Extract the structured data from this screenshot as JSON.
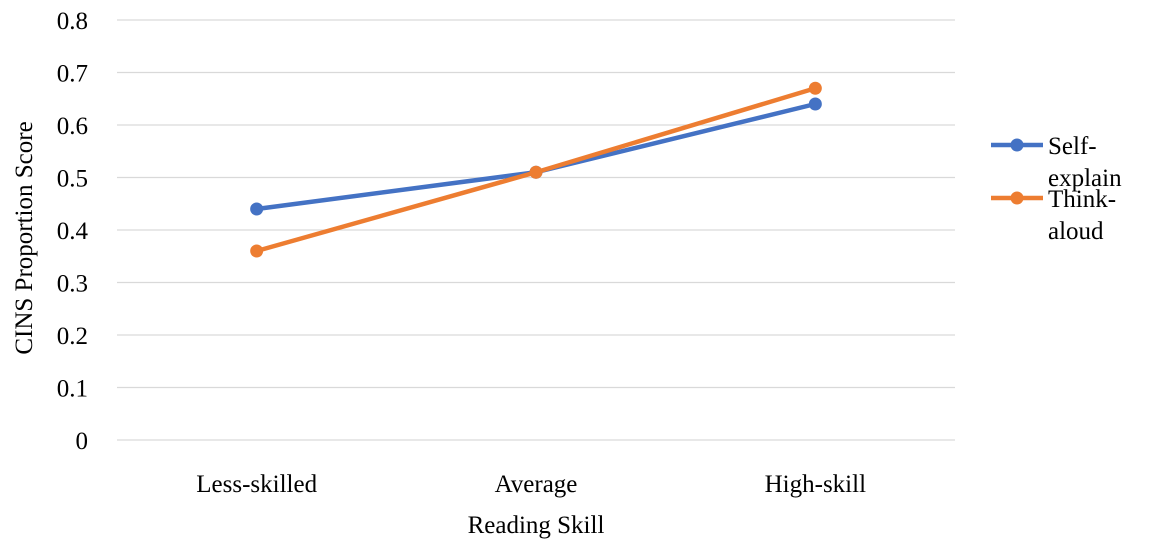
{
  "chart_data": {
    "type": "line",
    "title": "",
    "xlabel": "Reading Skill",
    "ylabel": "CINS Proportion Score",
    "categories": [
      "Less-skilled",
      "Average",
      "High-skill"
    ],
    "ylim": [
      0,
      0.8
    ],
    "yticks": [
      "0",
      "0.1",
      "0.2",
      "0.3",
      "0.4",
      "0.5",
      "0.6",
      "0.7",
      "0.8"
    ],
    "ytick_values": [
      0,
      0.1,
      0.2,
      0.3,
      0.4,
      0.5,
      0.6,
      0.7,
      0.8
    ],
    "grid": true,
    "legend_position": "right",
    "series": [
      {
        "name": "Self-explain",
        "legend_lines": [
          "Self-",
          "explain"
        ],
        "color": "#4472C4",
        "values": [
          0.44,
          0.51,
          0.64
        ]
      },
      {
        "name": "Think-aloud",
        "legend_lines": [
          "Think-",
          "aloud"
        ],
        "color": "#ED7D31",
        "values": [
          0.36,
          0.51,
          0.67
        ]
      }
    ]
  }
}
